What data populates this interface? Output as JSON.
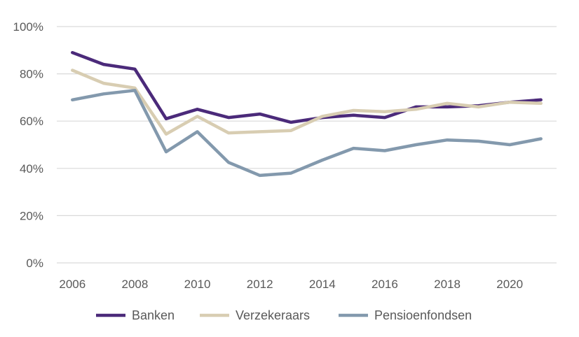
{
  "chart_data": {
    "type": "line",
    "title": "",
    "xlabel": "",
    "ylabel": "",
    "x": [
      2006,
      2007,
      2008,
      2009,
      2010,
      2011,
      2012,
      2013,
      2014,
      2015,
      2016,
      2017,
      2018,
      2019,
      2020,
      2021
    ],
    "x_ticks": [
      "2006",
      "2008",
      "2010",
      "2012",
      "2014",
      "2016",
      "2018",
      "2020"
    ],
    "y_ticks": [
      "0%",
      "20%",
      "40%",
      "60%",
      "80%",
      "100%"
    ],
    "ylim": [
      0,
      100
    ],
    "grid": "horizontal",
    "legend_position": "bottom",
    "series": [
      {
        "name": "Banken",
        "color": "#4b2a7a",
        "values": [
          89,
          84,
          82,
          61,
          65,
          61.5,
          63,
          59.5,
          61.5,
          62.5,
          61.5,
          66,
          66,
          66.5,
          68,
          69
        ]
      },
      {
        "name": "Verzekeraars",
        "color": "#d8cdb2",
        "values": [
          81.5,
          76,
          74,
          54.5,
          62,
          55,
          55.5,
          56,
          62,
          64.5,
          64,
          65,
          67.5,
          66,
          68,
          67.5
        ]
      },
      {
        "name": "Pensioenfondsen",
        "color": "#8399ad",
        "values": [
          69,
          71.5,
          73,
          47,
          55.5,
          42.5,
          37,
          38,
          43.5,
          48.5,
          47.5,
          50,
          52,
          51.5,
          50,
          52.5
        ]
      }
    ]
  }
}
